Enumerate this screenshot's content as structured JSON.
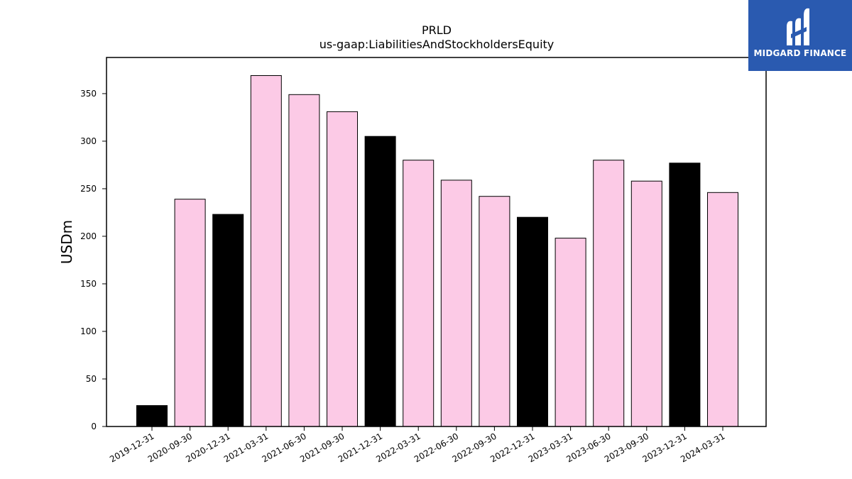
{
  "brand": {
    "name": "MIDGARD FINANCE",
    "logo_icon": "midgard-logo-icon",
    "background_color": "#2a5ab0"
  },
  "chart_data": {
    "type": "bar",
    "title": "PRLD",
    "subtitle": "us-gaap:LiabilitiesAndStockholdersEquity",
    "xlabel": "",
    "ylabel": "USDm",
    "ylim": [
      0,
      388
    ],
    "yticks": [
      0,
      50,
      100,
      150,
      200,
      250,
      300,
      350
    ],
    "grid": false,
    "categories": [
      "2019-12-31",
      "2020-09-30",
      "2020-12-31",
      "2021-03-31",
      "2021-06-30",
      "2021-09-30",
      "2021-12-31",
      "2022-03-31",
      "2022-06-30",
      "2022-09-30",
      "2022-12-31",
      "2023-03-31",
      "2023-06-30",
      "2023-09-30",
      "2023-12-31",
      "2024-03-31"
    ],
    "values": [
      22,
      239,
      223,
      369,
      349,
      331,
      305,
      280,
      259,
      242,
      220,
      198,
      280,
      258,
      277,
      246
    ],
    "colors": [
      "#000000",
      "#fccae6",
      "#000000",
      "#fccae6",
      "#fccae6",
      "#fccae6",
      "#000000",
      "#fccae6",
      "#fccae6",
      "#fccae6",
      "#000000",
      "#fccae6",
      "#fccae6",
      "#fccae6",
      "#000000",
      "#fccae6"
    ]
  }
}
